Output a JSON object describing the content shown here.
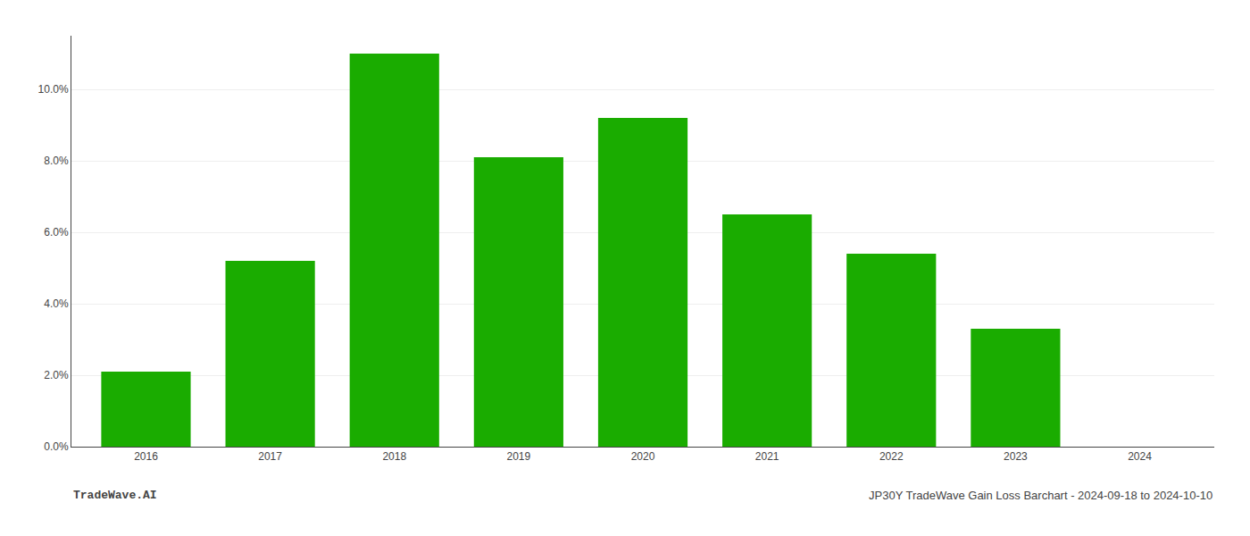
{
  "chart_data": {
    "type": "bar",
    "categories": [
      "2016",
      "2017",
      "2018",
      "2019",
      "2020",
      "2021",
      "2022",
      "2023",
      "2024"
    ],
    "values": [
      0.021,
      0.052,
      0.11,
      0.081,
      0.092,
      0.065,
      0.054,
      0.033,
      0.0
    ],
    "color": "#1aac00",
    "ylim": [
      0,
      0.115
    ],
    "yticks": [
      {
        "value": 0.0,
        "label": "0.0%"
      },
      {
        "value": 0.02,
        "label": "2.0%"
      },
      {
        "value": 0.04,
        "label": "4.0%"
      },
      {
        "value": 0.06,
        "label": "6.0%"
      },
      {
        "value": 0.08,
        "label": "8.0%"
      },
      {
        "value": 0.1,
        "label": "10.0%"
      }
    ],
    "grid": true,
    "annotations": [
      "TradeWave.AI",
      "JP30Y TradeWave Gain Loss Barchart - 2024-09-18 to 2024-10-10"
    ]
  }
}
